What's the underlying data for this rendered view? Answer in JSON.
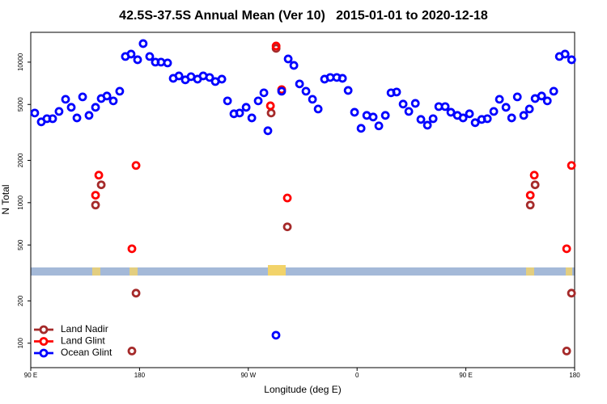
{
  "chart_data": {
    "type": "scatter",
    "title": "42.5S-37.5S Annual Mean (Ver 10)   2015-01-01 to 2020-12-18",
    "x_label": "Longitude (deg E)",
    "y_label": "N Total",
    "xlim": [
      90,
      540
    ],
    "xticks": [
      {
        "value": 90,
        "label": "90 E"
      },
      180,
      {
        "value": 270,
        "label": "90 W"
      },
      {
        "value": 360,
        "label": "0"
      },
      {
        "value": 450,
        "label": "90 E"
      },
      {
        "value": 540,
        "label": "180"
      }
    ],
    "ylim": [
      67,
      16300
    ],
    "y_log": true,
    "yticks": [
      100,
      200,
      500,
      1000,
      2000,
      5000,
      10000
    ],
    "legend_position": "lower-left",
    "series": [
      {
        "name": "Land Nadir",
        "color": "#a52a2a",
        "x": [
          143.6,
          148.3,
          177.1,
          173.7,
          288.9,
          293,
          302.3,
          503.3,
          507.3,
          537.4,
          533.4
        ],
        "values": [
          962,
          1340,
          227,
          88,
          4345,
          12530,
          673,
          962,
          1340,
          227,
          88
        ]
      },
      {
        "name": "Land Glint",
        "color": "#ff0000",
        "x": [
          146.3,
          143.6,
          173.7,
          177.1,
          288.3,
          293,
          297.6,
          302.3,
          506.6,
          503.3,
          533.4,
          537.4
        ],
        "values": [
          1570,
          1130,
          470,
          1840,
          4890,
          13030,
          6380,
          1080,
          1570,
          1130,
          470,
          1840
        ]
      },
      {
        "name": "Ocean Glint",
        "color": "#0000ff",
        "x": [
          93.3,
          98.7,
          103.4,
          108.1,
          113.4,
          118.8,
          123.5,
          128.2,
          132.9,
          138.2,
          143.6,
          148.3,
          153,
          158.3,
          163.6,
          168.3,
          173,
          178.4,
          183,
          188.4,
          193.1,
          197.8,
          203.2,
          207.9,
          212.6,
          217.9,
          222.6,
          228,
          232.7,
          238,
          242.7,
          248.1,
          252.8,
          258.1,
          262.8,
          268.2,
          272.9,
          278.2,
          282.9,
          286.2,
          292.9,
          297.6,
          303,
          307.7,
          312.4,
          317.7,
          323.1,
          327.8,
          333.1,
          337.8,
          343.2,
          347.9,
          352.6,
          357.9,
          363.3,
          368,
          373.3,
          378,
          383.4,
          388.1,
          392.7,
          398.1,
          402.8,
          408.2,
          412.8,
          418.2,
          422.9,
          427.6,
          432.9,
          437.6,
          443,
          447.7,
          453,
          457.7,
          463.1,
          467.8,
          473.1,
          477.8,
          483.2,
          487.9,
          492.6,
          497.9,
          502.6,
          507.3,
          512.7,
          517.4,
          522.7,
          527.4,
          532.1,
          537.5
        ],
        "values": [
          4345,
          3760,
          3960,
          3960,
          4460,
          5440,
          4770,
          4010,
          5660,
          4180,
          4770,
          5510,
          5740,
          5300,
          6210,
          10970,
          11410,
          10400,
          13550,
          10970,
          10000,
          10000,
          9870,
          7670,
          7980,
          7480,
          7880,
          7570,
          7980,
          7780,
          7280,
          7570,
          5300,
          4290,
          4345,
          4770,
          4010,
          5300,
          6050,
          3250,
          114,
          6210,
          10540,
          9480,
          7000,
          6210,
          5440,
          4640,
          7570,
          7780,
          7780,
          7670,
          6290,
          4400,
          3380,
          4180,
          4070,
          3520,
          4180,
          6050,
          6130,
          5030,
          4460,
          5090,
          3910,
          3560,
          3960,
          4830,
          4830,
          4400,
          4180,
          4010,
          4290,
          3710,
          3910,
          3960,
          4460,
          5440,
          4770,
          4010,
          5660,
          4180,
          4640,
          5510,
          5740,
          5300,
          6210,
          10970,
          11410,
          10400
        ]
      }
    ]
  }
}
